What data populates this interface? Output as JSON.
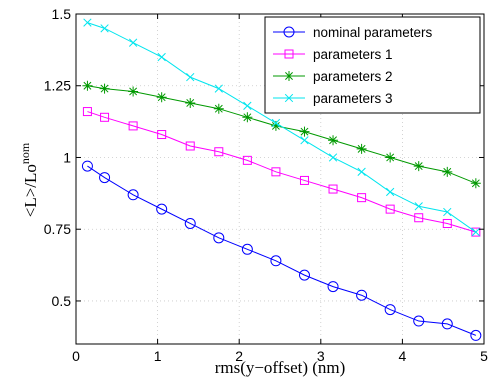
{
  "chart_data": {
    "type": "line",
    "title": "",
    "xlabel": "rms(y−offset) (nm)",
    "ylabel_main": "<L>/Lo",
    "ylabel_sup": "nom",
    "xlim": [
      0,
      5
    ],
    "ylim": [
      0.35,
      1.5
    ],
    "xticks": [
      0,
      1,
      2,
      3,
      4,
      5
    ],
    "xtick_labels": [
      "0",
      "1",
      "2",
      "3",
      "4",
      "5"
    ],
    "yticks": [
      0.5,
      0.75,
      1,
      1.25,
      1.5
    ],
    "ytick_labels": [
      "0.5",
      "0.75",
      "1",
      "1.25",
      "1.5"
    ],
    "grid": true,
    "legend_position": "top-right",
    "x": [
      0.14,
      0.35,
      0.7,
      1.05,
      1.4,
      1.75,
      2.1,
      2.45,
      2.8,
      3.15,
      3.5,
      3.85,
      4.2,
      4.55,
      4.9
    ],
    "series": [
      {
        "name": "nominal parameters",
        "color": "#0000ff",
        "marker": "circle",
        "values": [
          0.97,
          0.93,
          0.87,
          0.82,
          0.77,
          0.72,
          0.68,
          0.64,
          0.59,
          0.55,
          0.52,
          0.47,
          0.43,
          0.42,
          0.38
        ]
      },
      {
        "name": "parameters 1",
        "color": "#ff00ff",
        "marker": "square",
        "values": [
          1.16,
          1.14,
          1.11,
          1.08,
          1.04,
          1.02,
          0.99,
          0.95,
          0.92,
          0.89,
          0.86,
          0.82,
          0.79,
          0.77,
          0.74
        ]
      },
      {
        "name": "parameters 2",
        "color": "#009900",
        "marker": "star",
        "values": [
          1.25,
          1.24,
          1.23,
          1.21,
          1.19,
          1.17,
          1.14,
          1.11,
          1.09,
          1.06,
          1.03,
          1.0,
          0.97,
          0.95,
          0.91
        ]
      },
      {
        "name": "parameters 3",
        "color": "#00e5ee",
        "marker": "x",
        "values": [
          1.47,
          1.45,
          1.4,
          1.35,
          1.28,
          1.24,
          1.18,
          1.12,
          1.06,
          1.0,
          0.95,
          0.88,
          0.83,
          0.81,
          0.74
        ]
      }
    ]
  }
}
